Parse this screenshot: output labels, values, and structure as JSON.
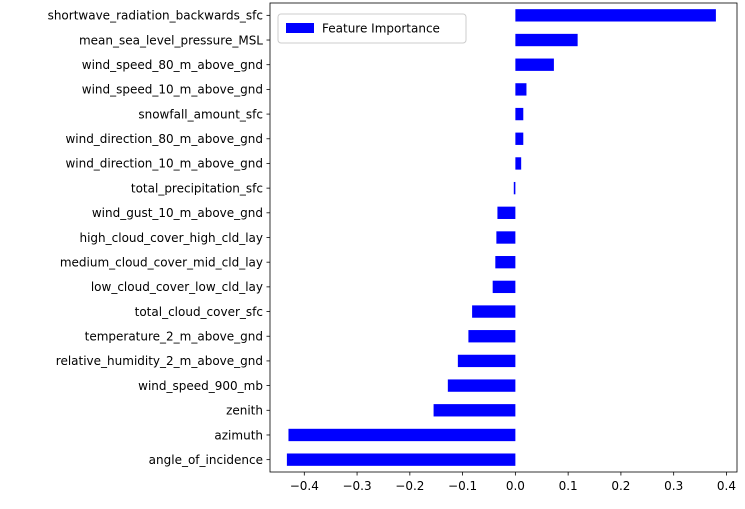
{
  "chart_data": {
    "type": "bar",
    "orientation": "horizontal",
    "categories": [
      "shortwave_radiation_backwards_sfc",
      "mean_sea_level_pressure_MSL",
      "wind_speed_80_m_above_gnd",
      "wind_speed_10_m_above_gnd",
      "snowfall_amount_sfc",
      "wind_direction_80_m_above_gnd",
      "wind_direction_10_m_above_gnd",
      "total_precipitation_sfc",
      "wind_gust_10_m_above_gnd",
      "high_cloud_cover_high_cld_lay",
      "medium_cloud_cover_mid_cld_lay",
      "low_cloud_cover_low_cld_lay",
      "total_cloud_cover_sfc",
      "temperature_2_m_above_gnd",
      "relative_humidity_2_m_above_gnd",
      "wind_speed_900_mb",
      "zenith",
      "azimuth",
      "angle_of_incidence"
    ],
    "series": [
      {
        "name": "Feature Importance",
        "color": "#0000ff",
        "values": [
          0.38,
          0.118,
          0.073,
          0.021,
          0.015,
          0.015,
          0.011,
          -0.003,
          -0.034,
          -0.036,
          -0.038,
          -0.043,
          -0.082,
          -0.089,
          -0.109,
          -0.128,
          -0.155,
          -0.43,
          -0.433
        ]
      }
    ],
    "xlim": [
      -0.465,
      0.42
    ],
    "xticks": [
      -0.4,
      -0.3,
      -0.2,
      -0.1,
      0.0,
      0.1,
      0.2,
      0.3,
      0.4
    ],
    "xtick_labels": [
      "−0.4",
      "−0.3",
      "−0.2",
      "−0.1",
      "0.0",
      "0.1",
      "0.2",
      "0.3",
      "0.4"
    ],
    "grid": false,
    "legend": {
      "position": "top-left",
      "entries": [
        "Feature Importance"
      ]
    },
    "title": "",
    "xlabel": "",
    "ylabel": ""
  }
}
